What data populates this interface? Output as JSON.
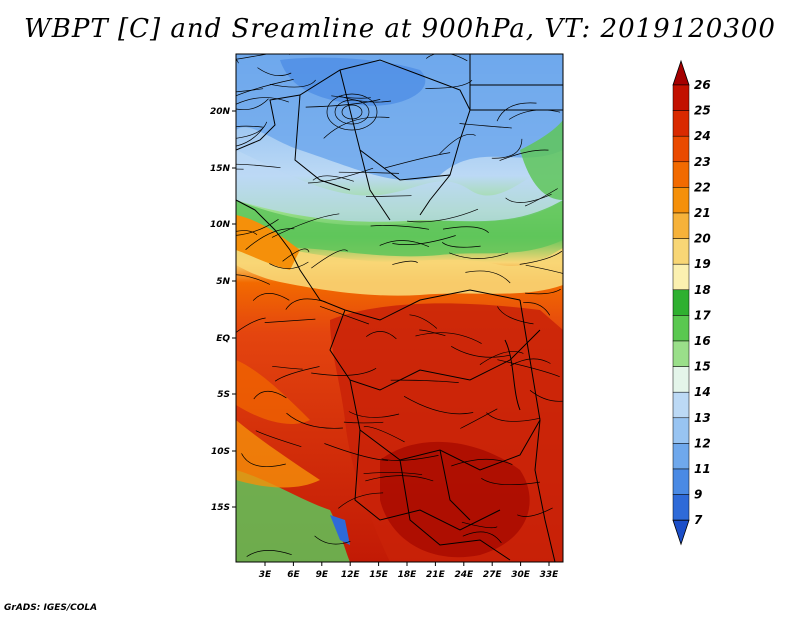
{
  "title": "WBPT [C] and Sreamline at 900hPa, VT: 2019120300",
  "footer": "GrADS: IGES/COLA",
  "lat_labels": [
    "20N",
    "15N",
    "10N",
    "5N",
    "EQ",
    "5S",
    "10S",
    "15S"
  ],
  "lon_labels": [
    "3E",
    "6E",
    "9E",
    "12E",
    "15E",
    "18E",
    "21E",
    "24E",
    "27E",
    "30E",
    "33E"
  ],
  "colorbar": {
    "labels": [
      "26",
      "25",
      "24",
      "23",
      "22",
      "21",
      "20",
      "19",
      "18",
      "17",
      "16",
      "15",
      "14",
      "13",
      "12",
      "11",
      "9",
      "7"
    ],
    "colors": [
      "#a50000",
      "#c21000",
      "#d92a00",
      "#ea4a00",
      "#f26a00",
      "#f5900a",
      "#f6b23a",
      "#f8d675",
      "#fbf0b0",
      "#2fb030",
      "#5ac850",
      "#9adf8a",
      "#e4f5ea",
      "#bcd9f5",
      "#98c4f2",
      "#6fa8ec",
      "#4a8ae4",
      "#2e6ad8",
      "#1b4ec8"
    ]
  },
  "colors": {
    "warm": "#d93f10",
    "hot": "#c21b05",
    "cool": "#7fb4ec",
    "green": "#5fc55a"
  }
}
